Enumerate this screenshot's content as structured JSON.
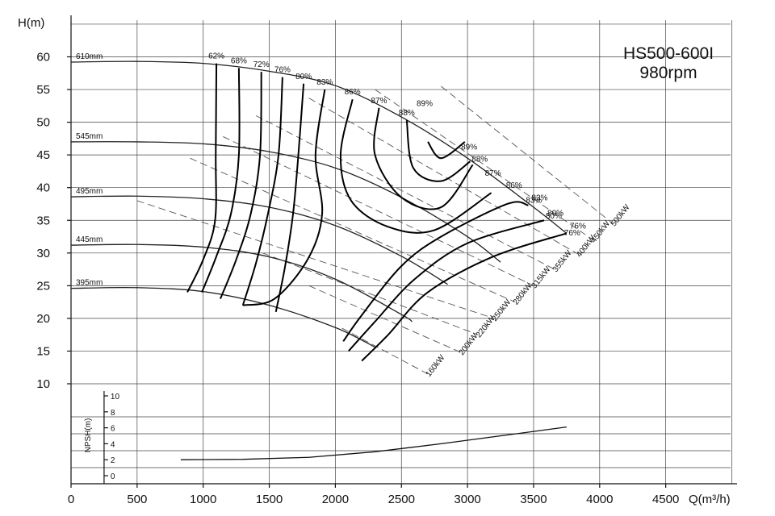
{
  "chart_data": {
    "type": "line",
    "title": "HS500-600I",
    "subtitle": "980rpm",
    "xlabel": "Q(m³/h)",
    "ylabel": "H(m)",
    "xlim": [
      0,
      5000
    ],
    "ylim": [
      10,
      65
    ],
    "grid": true,
    "x_ticks": [
      0,
      500,
      1000,
      1500,
      2000,
      2500,
      3000,
      3500,
      4000,
      4500
    ],
    "y_ticks": [
      10,
      15,
      20,
      25,
      30,
      35,
      40,
      45,
      50,
      55,
      60
    ],
    "head_curves": [
      {
        "label": "610mm",
        "points": [
          [
            0,
            59.2
          ],
          [
            500,
            59.3
          ],
          [
            1000,
            59.0
          ],
          [
            1500,
            57.8
          ],
          [
            2000,
            55.6
          ],
          [
            2500,
            50.8
          ],
          [
            3000,
            44.5
          ],
          [
            3500,
            37.0
          ],
          [
            3750,
            33.0
          ]
        ]
      },
      {
        "label": "545mm",
        "points": [
          [
            0,
            47.0
          ],
          [
            500,
            47.0
          ],
          [
            1000,
            46.7
          ],
          [
            1500,
            45.5
          ],
          [
            2000,
            43.0
          ],
          [
            2500,
            38.5
          ],
          [
            3000,
            32.5
          ],
          [
            3250,
            28.6
          ]
        ]
      },
      {
        "label": "495mm",
        "points": [
          [
            0,
            38.6
          ],
          [
            500,
            38.7
          ],
          [
            1000,
            38.3
          ],
          [
            1500,
            37.0
          ],
          [
            2000,
            34.2
          ],
          [
            2500,
            29.5
          ],
          [
            2850,
            25.2
          ]
        ]
      },
      {
        "label": "445mm",
        "points": [
          [
            0,
            31.2
          ],
          [
            500,
            31.3
          ],
          [
            1000,
            30.9
          ],
          [
            1500,
            29.4
          ],
          [
            2000,
            26.0
          ],
          [
            2500,
            20.6
          ],
          [
            2580,
            19.5
          ]
        ]
      },
      {
        "label": "395mm",
        "points": [
          [
            0,
            24.6
          ],
          [
            500,
            24.7
          ],
          [
            1000,
            24.1
          ],
          [
            1500,
            22.0
          ],
          [
            2000,
            18.6
          ],
          [
            2300,
            15.6
          ]
        ]
      }
    ],
    "efficiency_curves": [
      {
        "label": "62%",
        "points": [
          [
            1100,
            59.0
          ],
          [
            1095,
            45.0
          ],
          [
            1090,
            35.0
          ],
          [
            1000,
            29.0
          ],
          [
            880,
            24.0
          ]
        ]
      },
      {
        "label": "68%",
        "points": [
          [
            1270,
            58.3
          ],
          [
            1270,
            45.0
          ],
          [
            1210,
            36.0
          ],
          [
            1100,
            29.5
          ],
          [
            990,
            24.0
          ]
        ]
      },
      {
        "label": "72%",
        "points": [
          [
            1440,
            57.7
          ],
          [
            1430,
            45.0
          ],
          [
            1360,
            36.0
          ],
          [
            1250,
            29.0
          ],
          [
            1130,
            23.0
          ]
        ]
      },
      {
        "label": "76%",
        "points": [
          [
            1600,
            56.9
          ],
          [
            1570,
            45.0
          ],
          [
            1490,
            36.0
          ],
          [
            1400,
            28.5
          ],
          [
            1300,
            22.0
          ]
        ]
      },
      {
        "label": "80%",
        "points": [
          [
            1760,
            55.9
          ],
          [
            1720,
            45.0
          ],
          [
            1680,
            36.0
          ],
          [
            1620,
            28.0
          ],
          [
            1550,
            21.0
          ]
        ]
      },
      {
        "label": "83%",
        "points": [
          [
            1920,
            55.0
          ],
          [
            1850,
            45.0
          ],
          [
            1900,
            36.0
          ],
          [
            1790,
            29.0
          ],
          [
            1540,
            23.0
          ],
          [
            1300,
            22.0
          ]
        ]
      },
      {
        "label": "86%",
        "points": [
          [
            2130,
            53.5
          ],
          [
            2040,
            45.0
          ],
          [
            2120,
            38.0
          ],
          [
            2400,
            34.0
          ],
          [
            2750,
            33.5
          ],
          [
            3180,
            39.2
          ]
        ]
      },
      {
        "label": "87%",
        "points": [
          [
            2330,
            52.2
          ],
          [
            2300,
            45.0
          ],
          [
            2500,
            38.5
          ],
          [
            2800,
            37.0
          ],
          [
            3040,
            43.5
          ]
        ]
      },
      {
        "label": "88%",
        "points": [
          [
            2540,
            50.3
          ],
          [
            2590,
            43.0
          ],
          [
            2800,
            41.0
          ],
          [
            3020,
            44.0
          ]
        ]
      },
      {
        "label": "89%",
        "points": [
          [
            2700,
            47.0
          ],
          [
            2800,
            44.5
          ],
          [
            2980,
            47.0
          ]
        ]
      },
      {
        "label": "83%",
        "points": [
          [
            2060,
            16.5
          ],
          [
            2200,
            20.5
          ],
          [
            2500,
            28.0
          ],
          [
            2800,
            32.5
          ],
          [
            3300,
            37.5
          ],
          [
            3460,
            37.3
          ]
        ]
      },
      {
        "label": "80%",
        "points": [
          [
            2100,
            15.0
          ],
          [
            2300,
            19.5
          ],
          [
            2600,
            26.0
          ],
          [
            3000,
            31.5
          ],
          [
            3580,
            35.0
          ]
        ]
      },
      {
        "label": "76%",
        "points": [
          [
            2200,
            13.5
          ],
          [
            2400,
            17.5
          ],
          [
            2700,
            24.0
          ],
          [
            3200,
            29.5
          ],
          [
            3750,
            33.0
          ]
        ]
      }
    ],
    "power_lines": [
      {
        "label": "160kW",
        "points": [
          [
            2050,
            18.5
          ],
          [
            2700,
            11.5
          ]
        ]
      },
      {
        "label": "200kW",
        "points": [
          [
            1800,
            25.0
          ],
          [
            2950,
            14.8
          ]
        ]
      },
      {
        "label": "220kW",
        "points": [
          [
            1450,
            30.0
          ],
          [
            3080,
            17.5
          ]
        ]
      },
      {
        "label": "250kW",
        "points": [
          [
            500,
            38.0
          ],
          [
            3200,
            20.0
          ]
        ]
      },
      {
        "label": "280kW",
        "points": [
          [
            900,
            44.5
          ],
          [
            3360,
            22.5
          ]
        ]
      },
      {
        "label": "315kW",
        "points": [
          [
            1150,
            47.8
          ],
          [
            3500,
            25.0
          ]
        ]
      },
      {
        "label": "355kW",
        "points": [
          [
            1400,
            51.0
          ],
          [
            3660,
            27.5
          ]
        ]
      },
      {
        "label": "400kW",
        "points": [
          [
            1800,
            53.7
          ],
          [
            3840,
            29.8
          ]
        ]
      },
      {
        "label": "450kW",
        "points": [
          [
            2300,
            55.0
          ],
          [
            3950,
            32.0
          ]
        ]
      },
      {
        "label": "500kW",
        "points": [
          [
            2800,
            55.5
          ],
          [
            4100,
            34.5
          ]
        ]
      }
    ],
    "npsh": {
      "ylabel": "NPSH(m)",
      "ylim": [
        0,
        10
      ],
      "y_ticks": [
        0,
        2,
        4,
        6,
        8,
        10
      ],
      "points": [
        [
          830,
          2.0
        ],
        [
          1300,
          2.05
        ],
        [
          1800,
          2.3
        ],
        [
          2300,
          3.0
        ],
        [
          2800,
          4.0
        ],
        [
          3300,
          5.1
        ],
        [
          3750,
          6.1
        ]
      ]
    }
  }
}
